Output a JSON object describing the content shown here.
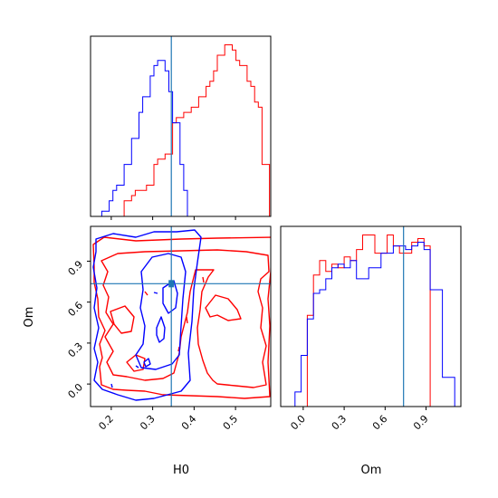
{
  "colors": {
    "series_a": "#ff0000",
    "series_b": "#0000ff",
    "truth": "#1f77b4",
    "axes": "#000000"
  },
  "chart_data": {
    "type": "corner",
    "parameters": [
      "H0",
      "Om"
    ],
    "truths": {
      "H0": 0.345,
      "Om": 0.735
    },
    "ranges": {
      "H0": [
        0.15,
        0.585
      ],
      "Om": [
        -0.165,
        1.155
      ]
    },
    "ticks": {
      "H0": [
        0.2,
        0.3,
        0.4,
        0.5
      ],
      "Om": [
        0.0,
        0.3,
        0.6,
        0.9
      ]
    },
    "tick_labels": {
      "H0": [
        "0.2",
        "0.3",
        "0.4",
        "0.5"
      ],
      "Om": [
        "0.0",
        "0.3",
        "0.6",
        "0.9"
      ]
    },
    "xlabels": [
      "H0",
      "Om"
    ],
    "ylabel": "Om",
    "marginals": [
      {
        "parameter": "H0",
        "bin_edges": [
          0.15,
          0.159,
          0.168,
          0.177,
          0.186,
          0.195,
          0.204,
          0.213,
          0.222,
          0.231,
          0.24,
          0.249,
          0.258,
          0.267,
          0.276,
          0.285,
          0.294,
          0.303,
          0.312,
          0.321,
          0.33,
          0.339,
          0.348,
          0.357,
          0.366,
          0.375,
          0.384,
          0.393,
          0.402,
          0.411,
          0.42,
          0.429,
          0.438,
          0.447,
          0.456,
          0.465,
          0.474,
          0.483,
          0.492,
          0.501,
          0.51,
          0.519,
          0.528,
          0.537,
          0.546,
          0.555,
          0.564,
          0.573,
          0.582
        ],
        "series": [
          {
            "color": "#ff0000",
            "counts": [
              0,
              0,
              0,
              0,
              0,
              0,
              0,
              0,
              0,
              3,
              3,
              4,
              5,
              5,
              5,
              6,
              6,
              10,
              11,
              11,
              12,
              12,
              18,
              19,
              19,
              20,
              20,
              21,
              21,
              23,
              23,
              25,
              26,
              28,
              31,
              31,
              33,
              33,
              32,
              30,
              29,
              29,
              26,
              25,
              22,
              21,
              10,
              10
            ]
          },
          {
            "color": "#0000ff",
            "counts": [
              0,
              0,
              0,
              1,
              1,
              3,
              5,
              6,
              6,
              10,
              10,
              15,
              15,
              20,
              23,
              23,
              27,
              29,
              30,
              30,
              28,
              24,
              18,
              18,
              10,
              5,
              0,
              0,
              0,
              0,
              0,
              0,
              0,
              0,
              0,
              0,
              0,
              0,
              0,
              0,
              0,
              0,
              0,
              0,
              0,
              0,
              0,
              0
            ]
          }
        ]
      },
      {
        "parameter": "Om",
        "bin_edges": [
          -0.06,
          -0.015,
          0.03,
          0.075,
          0.12,
          0.165,
          0.21,
          0.255,
          0.3,
          0.345,
          0.39,
          0.435,
          0.48,
          0.525,
          0.57,
          0.615,
          0.66,
          0.705,
          0.75,
          0.795,
          0.84,
          0.885,
          0.93,
          0.975,
          1.02,
          1.065,
          1.11
        ],
        "series": [
          {
            "color": "#ff0000",
            "counts": [
              0,
              0,
              25,
              36,
              40,
              37,
              39,
              38,
              41,
              40,
              43,
              47,
              47,
              42,
              42,
              47,
              44,
              42,
              42,
              45,
              46,
              44,
              0,
              0,
              0,
              0
            ]
          },
          {
            "color": "#0000ff",
            "counts": [
              4,
              14,
              24,
              31,
              32,
              35,
              38,
              39,
              38,
              40,
              35,
              35,
              38,
              38,
              42,
              42,
              44,
              44,
              43,
              44,
              45,
              43,
              32,
              32,
              8,
              8
            ]
          }
        ]
      }
    ],
    "joint": {
      "x": "H0",
      "y": "Om",
      "series": [
        {
          "color": "#ff0000",
          "contour_levels": 3,
          "x_range": [
            0.19,
            0.585
          ],
          "y_range": [
            -0.03,
            1.06
          ]
        },
        {
          "color": "#0000ff",
          "contour_levels": 3,
          "x_range": [
            0.18,
            0.385
          ],
          "y_range": [
            -0.08,
            1.07
          ]
        }
      ]
    }
  }
}
